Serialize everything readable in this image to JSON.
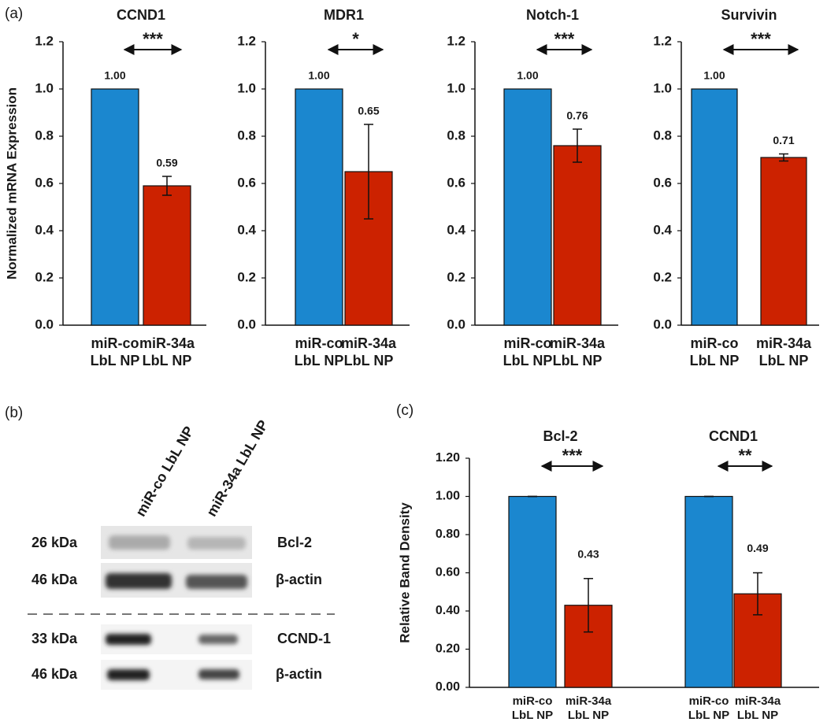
{
  "panel_labels": [
    "(a)",
    "(b)",
    "(c)"
  ],
  "chart_data": [
    {
      "type": "bar",
      "title": "CCND1",
      "y_label": "Normalized mRNA Expression",
      "significance": "***",
      "categories": [
        "miR-co LbL NP",
        "miR-34a LbL NP"
      ],
      "values": [
        1,
        0.59
      ],
      "value_labels": [
        "1.00",
        "0.59"
      ],
      "errors": [
        null,
        0.04
      ],
      "colors": [
        "#1b87cf",
        "#cc2200"
      ],
      "ylim": [
        0,
        1.2
      ],
      "yticks": [
        {
          "value": 0,
          "label": "0.0"
        },
        0.2,
        0.4,
        0.6,
        0.8,
        {
          "value": 1,
          "label": "1.0"
        },
        1.2
      ]
    },
    {
      "type": "bar",
      "title": "MDR1",
      "significance": "*",
      "categories": [
        "miR-co LbL NP",
        "miR-34a LbL NP"
      ],
      "values": [
        1,
        0.65
      ],
      "value_labels": [
        "1.00",
        "0.65"
      ],
      "errors": [
        null,
        0.2
      ],
      "colors": [
        "#1b87cf",
        "#cc2200"
      ],
      "ylim": [
        0,
        1.2
      ],
      "yticks": [
        {
          "value": 0,
          "label": "0.0"
        },
        0.2,
        0.4,
        0.6,
        0.8,
        {
          "value": 1,
          "label": "1.0"
        },
        1.2
      ]
    },
    {
      "type": "bar",
      "title": "Notch-1",
      "significance": "***",
      "categories": [
        "miR-co LbL NP",
        "miR-34a LbL NP"
      ],
      "values": [
        1,
        0.76
      ],
      "value_labels": [
        "1.00",
        "0.76"
      ],
      "errors": [
        null,
        0.07
      ],
      "colors": [
        "#1b87cf",
        "#cc2200"
      ],
      "ylim": [
        0,
        1.2
      ],
      "yticks": [
        {
          "value": 0,
          "label": "0.0"
        },
        0.2,
        0.4,
        0.6,
        0.8,
        {
          "value": 1,
          "label": "1.0"
        },
        1.2
      ]
    },
    {
      "type": "bar",
      "title": "Survivin",
      "significance": "***",
      "categories": [
        "miR-co LbL NP",
        "miR-34a LbL NP"
      ],
      "values": [
        1,
        0.71
      ],
      "value_labels": [
        "1.00",
        "0.71"
      ],
      "errors": [
        null,
        0.015
      ],
      "colors": [
        "#1b87cf",
        "#cc2200"
      ],
      "ylim": [
        0,
        1.2
      ],
      "yticks": [
        {
          "value": 0,
          "label": "0.0"
        },
        0.2,
        0.4,
        0.6,
        0.8,
        {
          "value": 1,
          "label": "1.0"
        },
        1.2
      ]
    },
    {
      "type": "bar",
      "y_label": "Relative Band Density",
      "colors": [
        "#1b87cf",
        "#cc2200"
      ],
      "ylim": [
        0,
        1.2
      ],
      "yticks": [
        {
          "value": 0,
          "label": "0.00"
        },
        {
          "value": 0.2,
          "label": "0.20"
        },
        {
          "value": 0.4,
          "label": "0.40"
        },
        {
          "value": 0.6,
          "label": "0.60"
        },
        {
          "value": 0.8,
          "label": "0.80"
        },
        {
          "value": 1,
          "label": "1.00"
        },
        {
          "value": 1.2,
          "label": "1.20"
        }
      ],
      "groups": [
        {
          "title": "Bcl-2",
          "significance": "***",
          "categories": [
            "miR-co LbL NP",
            "miR-34a LbL NP"
          ],
          "values": [
            1,
            0.43
          ],
          "value_labels": [
            null,
            "0.43"
          ],
          "errors": [
            0,
            0.14
          ]
        },
        {
          "title": "CCND1",
          "significance": "**",
          "categories": [
            "miR-co LbL NP",
            "miR-34a LbL NP"
          ],
          "values": [
            1,
            0.49
          ],
          "value_labels": [
            null,
            "0.49"
          ],
          "errors": [
            0,
            0.11
          ]
        }
      ]
    }
  ],
  "blot": {
    "lanes": [
      "miR-co LbL NP",
      "miR-34a LbL NP"
    ],
    "rows": [
      {
        "size": "26 kDa",
        "protein": "Bcl-2"
      },
      {
        "size": "46 kDa",
        "protein": "β-actin"
      },
      {
        "size": "33 kDa",
        "protein": "CCND-1"
      },
      {
        "size": "46 kDa",
        "protein": "β-actin"
      }
    ]
  }
}
